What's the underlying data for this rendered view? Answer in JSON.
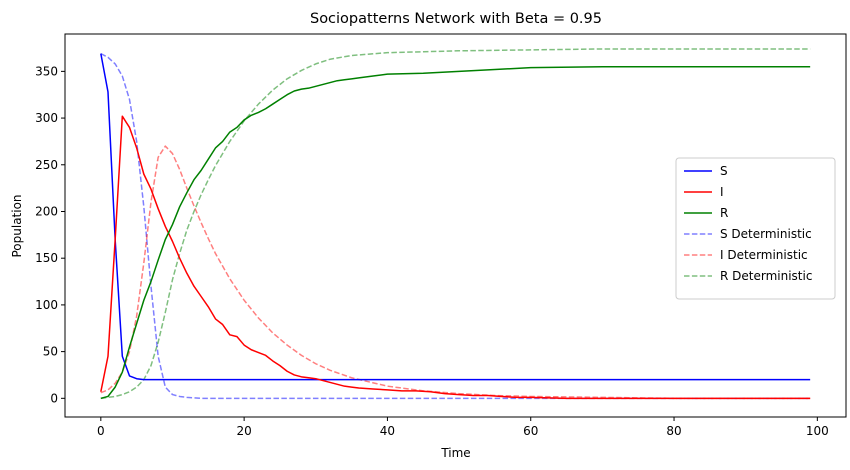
{
  "chart_data": {
    "type": "line",
    "title": "Sociopatterns Network with Beta = 0.95",
    "xlabel": "Time",
    "ylabel": "Population",
    "xlim": [
      -5,
      104
    ],
    "ylim": [
      -20,
      390
    ],
    "xticks": [
      0,
      20,
      40,
      60,
      80,
      100
    ],
    "yticks": [
      0,
      50,
      100,
      150,
      200,
      250,
      300,
      350
    ],
    "grid": false,
    "legend_position": "center-right",
    "series": [
      {
        "name": "S",
        "color": "#0000ff",
        "style": "solid",
        "opacity": 1,
        "points": [
          [
            0,
            369
          ],
          [
            1,
            328
          ],
          [
            2,
            170
          ],
          [
            3,
            45
          ],
          [
            4,
            24
          ],
          [
            5,
            21
          ],
          [
            6,
            20
          ],
          [
            10,
            20
          ],
          [
            20,
            20
          ],
          [
            40,
            20
          ],
          [
            60,
            20
          ],
          [
            80,
            20
          ],
          [
            99,
            20
          ]
        ]
      },
      {
        "name": "I",
        "color": "#ff0000",
        "style": "solid",
        "opacity": 1,
        "points": [
          [
            0,
            7
          ],
          [
            1,
            45
          ],
          [
            2,
            170
          ],
          [
            3,
            302
          ],
          [
            4,
            290
          ],
          [
            5,
            268
          ],
          [
            6,
            240
          ],
          [
            7,
            224
          ],
          [
            8,
            203
          ],
          [
            9,
            184
          ],
          [
            10,
            168
          ],
          [
            11,
            150
          ],
          [
            12,
            134
          ],
          [
            13,
            120
          ],
          [
            14,
            109
          ],
          [
            15,
            98
          ],
          [
            16,
            85
          ],
          [
            17,
            79
          ],
          [
            18,
            68
          ],
          [
            19,
            66
          ],
          [
            20,
            57
          ],
          [
            21,
            52
          ],
          [
            22,
            49
          ],
          [
            23,
            46
          ],
          [
            24,
            40
          ],
          [
            25,
            35
          ],
          [
            26,
            29
          ],
          [
            27,
            25
          ],
          [
            28,
            23
          ],
          [
            29,
            22
          ],
          [
            30,
            21
          ],
          [
            31,
            19
          ],
          [
            32,
            17
          ],
          [
            33,
            15
          ],
          [
            34,
            13
          ],
          [
            35,
            12
          ],
          [
            36,
            11
          ],
          [
            38,
            10
          ],
          [
            40,
            9
          ],
          [
            42,
            8
          ],
          [
            44,
            8
          ],
          [
            46,
            7
          ],
          [
            48,
            5
          ],
          [
            50,
            4
          ],
          [
            52,
            3
          ],
          [
            54,
            3
          ],
          [
            56,
            2
          ],
          [
            58,
            1
          ],
          [
            60,
            1
          ],
          [
            65,
            0
          ],
          [
            70,
            0
          ],
          [
            80,
            0
          ],
          [
            90,
            0
          ],
          [
            99,
            0
          ]
        ]
      },
      {
        "name": "R",
        "color": "#008000",
        "style": "solid",
        "opacity": 1,
        "points": [
          [
            0,
            0
          ],
          [
            1,
            2
          ],
          [
            2,
            12
          ],
          [
            3,
            28
          ],
          [
            4,
            55
          ],
          [
            5,
            80
          ],
          [
            6,
            105
          ],
          [
            7,
            125
          ],
          [
            8,
            148
          ],
          [
            9,
            170
          ],
          [
            10,
            186
          ],
          [
            11,
            205
          ],
          [
            12,
            220
          ],
          [
            13,
            234
          ],
          [
            14,
            244
          ],
          [
            15,
            256
          ],
          [
            16,
            268
          ],
          [
            17,
            275
          ],
          [
            18,
            285
          ],
          [
            19,
            290
          ],
          [
            20,
            298
          ],
          [
            21,
            303
          ],
          [
            22,
            306
          ],
          [
            23,
            310
          ],
          [
            24,
            315
          ],
          [
            25,
            320
          ],
          [
            26,
            325
          ],
          [
            27,
            329
          ],
          [
            28,
            331
          ],
          [
            29,
            332
          ],
          [
            30,
            334
          ],
          [
            31,
            336
          ],
          [
            32,
            338
          ],
          [
            33,
            340
          ],
          [
            34,
            341
          ],
          [
            35,
            342
          ],
          [
            36,
            343
          ],
          [
            38,
            345
          ],
          [
            40,
            347
          ],
          [
            45,
            348
          ],
          [
            50,
            350
          ],
          [
            55,
            352
          ],
          [
            60,
            354
          ],
          [
            70,
            355
          ],
          [
            80,
            355
          ],
          [
            90,
            355
          ],
          [
            99,
            355
          ]
        ]
      },
      {
        "name": "S Deterministic",
        "color": "#0000ff",
        "style": "dashed",
        "opacity": 0.5,
        "points": [
          [
            0,
            369
          ],
          [
            1,
            365
          ],
          [
            2,
            358
          ],
          [
            3,
            345
          ],
          [
            4,
            320
          ],
          [
            5,
            275
          ],
          [
            6,
            205
          ],
          [
            7,
            120
          ],
          [
            8,
            45
          ],
          [
            9,
            12
          ],
          [
            10,
            4
          ],
          [
            11,
            2
          ],
          [
            12,
            1
          ],
          [
            14,
            0
          ],
          [
            20,
            0
          ],
          [
            40,
            0
          ],
          [
            60,
            0
          ],
          [
            80,
            0
          ],
          [
            99,
            0
          ]
        ]
      },
      {
        "name": "I Deterministic",
        "color": "#ff0000",
        "style": "dashed",
        "opacity": 0.5,
        "points": [
          [
            0,
            6
          ],
          [
            1,
            9
          ],
          [
            2,
            16
          ],
          [
            3,
            28
          ],
          [
            4,
            50
          ],
          [
            5,
            88
          ],
          [
            6,
            145
          ],
          [
            7,
            210
          ],
          [
            8,
            258
          ],
          [
            9,
            270
          ],
          [
            10,
            262
          ],
          [
            11,
            245
          ],
          [
            12,
            225
          ],
          [
            13,
            206
          ],
          [
            14,
            188
          ],
          [
            15,
            171
          ],
          [
            16,
            155
          ],
          [
            18,
            128
          ],
          [
            20,
            105
          ],
          [
            22,
            86
          ],
          [
            24,
            70
          ],
          [
            26,
            57
          ],
          [
            28,
            46
          ],
          [
            30,
            37
          ],
          [
            32,
            30
          ],
          [
            35,
            22
          ],
          [
            40,
            13
          ],
          [
            45,
            8
          ],
          [
            50,
            5
          ],
          [
            55,
            3
          ],
          [
            60,
            2
          ],
          [
            70,
            1
          ],
          [
            80,
            0
          ],
          [
            99,
            0
          ]
        ]
      },
      {
        "name": "R Deterministic",
        "color": "#008000",
        "style": "dashed",
        "opacity": 0.5,
        "points": [
          [
            0,
            0
          ],
          [
            1,
            1
          ],
          [
            2,
            2
          ],
          [
            3,
            4
          ],
          [
            4,
            7
          ],
          [
            5,
            12
          ],
          [
            6,
            20
          ],
          [
            7,
            35
          ],
          [
            8,
            60
          ],
          [
            9,
            92
          ],
          [
            10,
            127
          ],
          [
            11,
            155
          ],
          [
            12,
            180
          ],
          [
            13,
            200
          ],
          [
            14,
            218
          ],
          [
            15,
            234
          ],
          [
            16,
            249
          ],
          [
            18,
            275
          ],
          [
            20,
            297
          ],
          [
            22,
            315
          ],
          [
            24,
            330
          ],
          [
            26,
            342
          ],
          [
            28,
            351
          ],
          [
            30,
            358
          ],
          [
            32,
            363
          ],
          [
            35,
            367
          ],
          [
            40,
            370
          ],
          [
            45,
            371
          ],
          [
            50,
            372
          ],
          [
            60,
            373
          ],
          [
            70,
            374
          ],
          [
            80,
            374
          ],
          [
            99,
            374
          ]
        ]
      }
    ]
  }
}
